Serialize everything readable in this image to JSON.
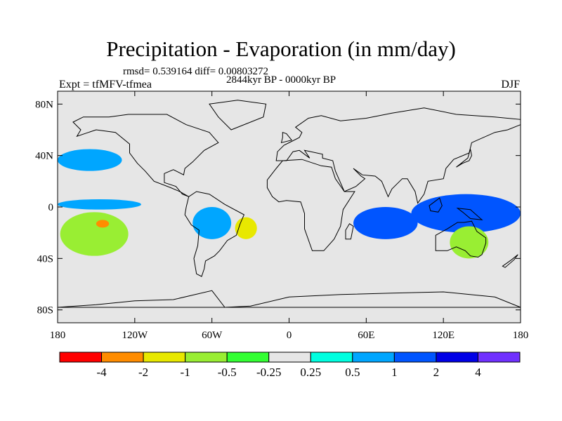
{
  "figure": {
    "title": "Precipitation - Evaporation (in mm/day)",
    "stats": "rmsd= 0.539164 diff= 0.00803272",
    "period": "2844kyr BP - 0000kyr BP",
    "experiment": "Expt = tfMFV-tfmea",
    "season": "DJF"
  },
  "map": {
    "type": "filled-contour world map",
    "projection": "cylindrical equidistant",
    "lon_range": [
      -180,
      180
    ],
    "lat_range": [
      -90,
      90
    ],
    "lat_ticks": [
      {
        "value": 80,
        "label": "80N"
      },
      {
        "value": 40,
        "label": "40N"
      },
      {
        "value": 0,
        "label": "0"
      },
      {
        "value": -40,
        "label": "40S"
      },
      {
        "value": -80,
        "label": "80S"
      }
    ],
    "lon_ticks": [
      {
        "value": -180,
        "label": "180"
      },
      {
        "value": -120,
        "label": "120W"
      },
      {
        "value": -60,
        "label": "60W"
      },
      {
        "value": 0,
        "label": "0"
      },
      {
        "value": 60,
        "label": "60E"
      },
      {
        "value": 120,
        "label": "120E"
      },
      {
        "value": 180,
        "label": "180"
      }
    ],
    "background_color": "#e6e6e6",
    "anomaly_fields": [
      {
        "name": "tropical-pacific-band-neg",
        "lon": [
          -180,
          -115
        ],
        "lat": [
          -2,
          6
        ],
        "level": 0.75
      },
      {
        "name": "south-pacific-dry",
        "lon": [
          -178,
          -125
        ],
        "lat": [
          -38,
          -4
        ],
        "level": -1
      },
      {
        "name": "south-pacific-core",
        "lon": [
          -150,
          -140
        ],
        "lat": [
          -16,
          -10
        ],
        "level": -4
      },
      {
        "name": "north-pacific-band",
        "lon": [
          -180,
          -130
        ],
        "lat": [
          28,
          45
        ],
        "level": 0.75
      },
      {
        "name": "amazon-wet",
        "lon": [
          -75,
          -45
        ],
        "lat": [
          -25,
          0
        ],
        "level": 0.75
      },
      {
        "name": "south-atlantic-dry",
        "lon": [
          -42,
          -25
        ],
        "lat": [
          -25,
          -8
        ],
        "level": -2
      },
      {
        "name": "indian-ocean-wet",
        "lon": [
          50,
          100
        ],
        "lat": [
          -25,
          0
        ],
        "level": 1.5
      },
      {
        "name": "maritime-continent-wet",
        "lon": [
          95,
          180
        ],
        "lat": [
          -20,
          10
        ],
        "level": 1.5
      },
      {
        "name": "australia-dry",
        "lon": [
          125,
          155
        ],
        "lat": [
          -40,
          -15
        ],
        "level": -0.75
      }
    ]
  },
  "colorbar": {
    "labels": [
      "-4",
      "-2",
      "-1",
      "-0.5",
      "-0.25",
      "0.25",
      "0.5",
      "1",
      "2",
      "4"
    ],
    "colors": [
      "#ff0000",
      "#ff8c00",
      "#e8e800",
      "#99ee33",
      "#33ff33",
      "#e6e6e6",
      "#00ffe0",
      "#00a6ff",
      "#0055ff",
      "#0000e6",
      "#7030ff"
    ]
  }
}
